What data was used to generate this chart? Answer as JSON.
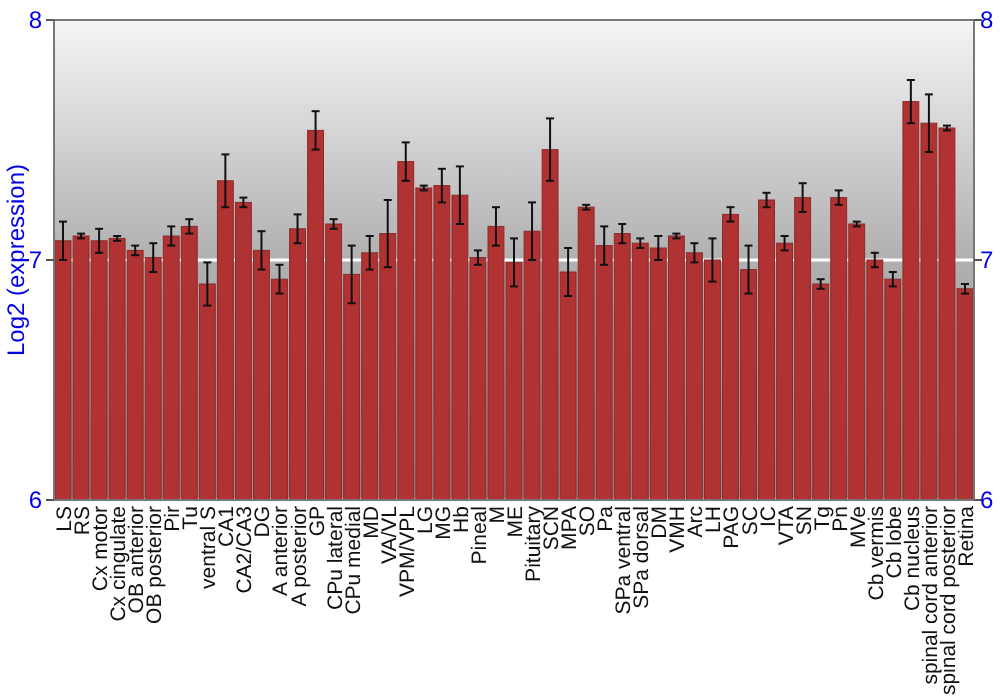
{
  "chart_data": {
    "type": "bar",
    "ylabel": "Log2 (expression)",
    "categories": [
      "LS",
      "RS",
      "Cx motor",
      "Cx cingulate",
      "OB anterior",
      "OB posterior",
      "Pir",
      "Tu",
      "ventral S",
      "CA1",
      "CA2/CA3",
      "DG",
      "A anterior",
      "A posterior",
      "GP",
      "CPu lateral",
      "CPu medial",
      "MD",
      "VA/VL",
      "VPM/VPL",
      "LG",
      "MG",
      "Hb",
      "Pineal",
      "M",
      "ME",
      "Pituitary",
      "SCN",
      "MPA",
      "SO",
      "Pa",
      "SPa ventral",
      "SPa dorsal",
      "DM",
      "VMH",
      "Arc",
      "LH",
      "PAG",
      "SC",
      "IC",
      "VTA",
      "SN",
      "Tg",
      "Pn",
      "MVe",
      "Cb vermis",
      "Cb lobe",
      "Cb nucleus",
      "spinal cord anterior",
      "spinal cord posterior",
      "Retina"
    ],
    "values": [
      7.08,
      7.1,
      7.08,
      7.09,
      7.04,
      7.01,
      7.1,
      7.14,
      6.9,
      7.33,
      7.24,
      7.04,
      6.92,
      7.13,
      7.54,
      7.15,
      6.94,
      7.03,
      7.11,
      7.41,
      7.3,
      7.31,
      7.27,
      7.01,
      7.14,
      6.99,
      7.12,
      7.46,
      6.95,
      7.22,
      7.06,
      7.11,
      7.07,
      7.05,
      7.1,
      7.03,
      7.0,
      7.19,
      6.96,
      7.25,
      7.07,
      7.26,
      6.9,
      7.26,
      7.15,
      7.0,
      6.92,
      7.66,
      7.57,
      7.55,
      6.88
    ],
    "errors": [
      0.08,
      0.01,
      0.05,
      0.01,
      0.02,
      0.06,
      0.04,
      0.03,
      0.09,
      0.11,
      0.02,
      0.08,
      0.06,
      0.06,
      0.08,
      0.02,
      0.12,
      0.07,
      0.14,
      0.08,
      0.01,
      0.07,
      0.12,
      0.03,
      0.08,
      0.1,
      0.12,
      0.13,
      0.1,
      0.01,
      0.08,
      0.04,
      0.02,
      0.05,
      0.01,
      0.04,
      0.09,
      0.03,
      0.1,
      0.03,
      0.03,
      0.06,
      0.02,
      0.03,
      0.01,
      0.03,
      0.03,
      0.09,
      0.12,
      0.01,
      0.02
    ],
    "color": "#b03232",
    "ylim": [
      6,
      8
    ],
    "yticks": [
      6,
      7,
      8
    ],
    "y2lim": [
      6,
      8
    ],
    "y2ticks": [
      6,
      7,
      8
    ],
    "grid": "y"
  }
}
